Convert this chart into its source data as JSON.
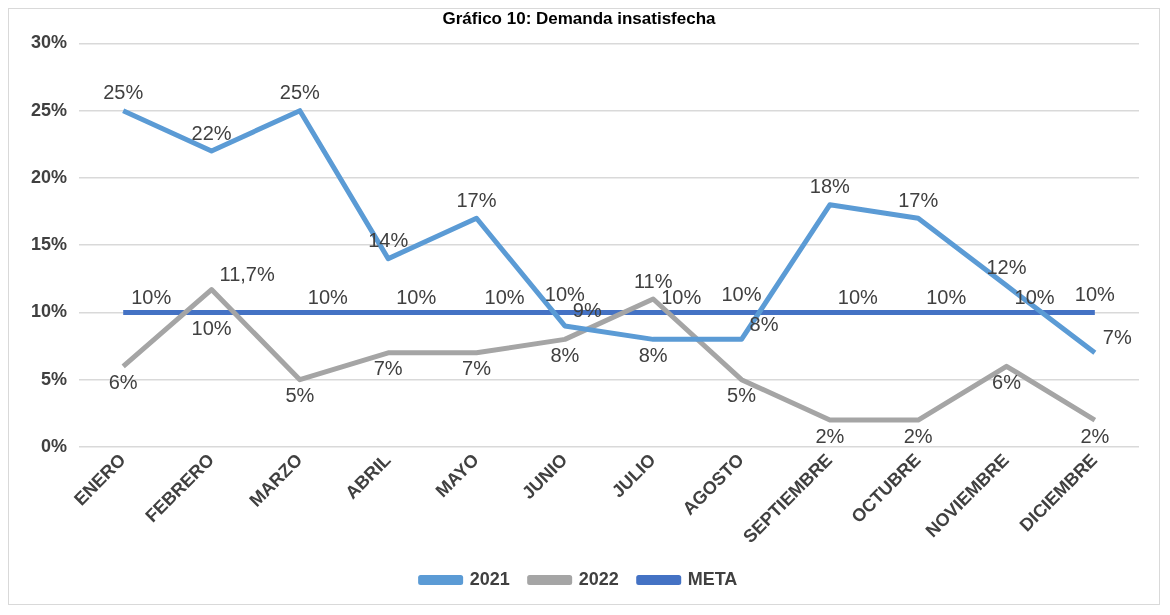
{
  "chart_data": {
    "type": "line",
    "title": "Gráfico 10: Demanda insatisfecha",
    "categories": [
      "ENERO",
      "FEBRERO",
      "MARZO",
      "ABRIL",
      "MAYO",
      "JUNIO",
      "JULIO",
      "AGOSTO",
      "SEPTIEMBRE",
      "OCTUBRE",
      "NOVIEMBRE",
      "DICIEMBRE"
    ],
    "series": [
      {
        "name": "2021",
        "color": "#5b9bd5",
        "values": [
          25,
          22,
          25,
          14,
          17,
          9,
          8,
          8,
          18,
          17,
          12,
          7
        ],
        "value_labels": [
          "25%",
          "22%",
          "25%",
          "14%",
          "17%",
          "9%",
          "8%",
          "8%",
          "18%",
          "17%",
          "12%",
          "7%"
        ]
      },
      {
        "name": "2022",
        "color": "#a5a5a5",
        "values": [
          6,
          11.7,
          5,
          7,
          7,
          8,
          11,
          5,
          2,
          2,
          6,
          2
        ],
        "value_labels": [
          "6%",
          "11,7%",
          "5%",
          "7%",
          "7%",
          "8%",
          "11%",
          "5%",
          "2%",
          "2%",
          "6%",
          "2%"
        ]
      },
      {
        "name": "META",
        "color": "#4472c4",
        "values": [
          10,
          10,
          10,
          10,
          10,
          10,
          10,
          10,
          10,
          10,
          10,
          10
        ],
        "value_labels": [
          "10%",
          "10%",
          "10%",
          "10%",
          "10%",
          "10%",
          "10%",
          "10%",
          "10%",
          "10%",
          "10%",
          "10%"
        ]
      }
    ],
    "ylim": [
      0,
      30
    ],
    "yticks": [
      {
        "value": 0,
        "label": "0%"
      },
      {
        "value": 5,
        "label": "5%"
      },
      {
        "value": 10,
        "label": "10%"
      },
      {
        "value": 15,
        "label": "15%"
      },
      {
        "value": 20,
        "label": "20%"
      },
      {
        "value": 25,
        "label": "25%"
      },
      {
        "value": 30,
        "label": "30%"
      }
    ],
    "grid": "y",
    "legend": "bottom",
    "marker": "none",
    "line_style": "solid"
  }
}
